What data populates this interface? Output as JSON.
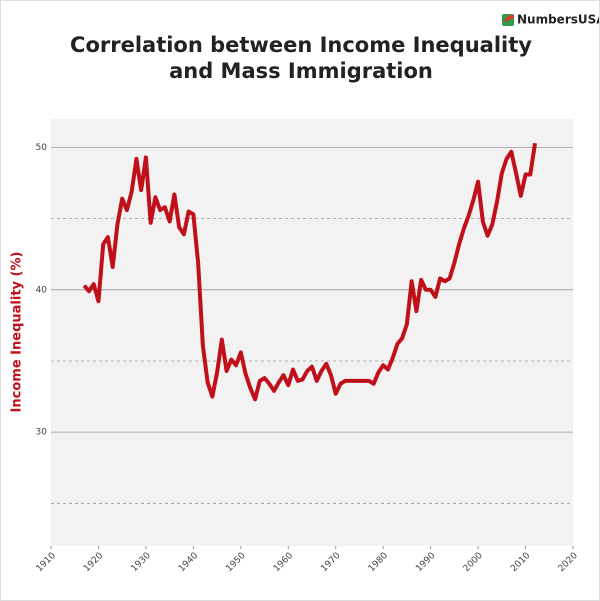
{
  "brand": "NumbersUSA",
  "chart_data": {
    "type": "line",
    "title": [
      "Correlation between Income Inequality",
      "and Mass Immigration"
    ],
    "y_label": "Income Inequality (%)",
    "x": [
      1917,
      1918,
      1919,
      1920,
      1921,
      1922,
      1923,
      1924,
      1925,
      1926,
      1927,
      1928,
      1929,
      1930,
      1931,
      1932,
      1933,
      1934,
      1935,
      1936,
      1937,
      1938,
      1939,
      1940,
      1941,
      1942,
      1943,
      1944,
      1945,
      1946,
      1947,
      1948,
      1949,
      1950,
      1951,
      1952,
      1953,
      1954,
      1955,
      1956,
      1957,
      1958,
      1959,
      1960,
      1961,
      1962,
      1963,
      1964,
      1965,
      1966,
      1967,
      1968,
      1969,
      1970,
      1971,
      1972,
      1973,
      1974,
      1975,
      1976,
      1977,
      1978,
      1979,
      1980,
      1981,
      1982,
      1983,
      1984,
      1985,
      1986,
      1987,
      1988,
      1989,
      1990,
      1991,
      1992,
      1993,
      1994,
      1995,
      1996,
      1997,
      1998,
      1999,
      2000,
      2001,
      2002,
      2003,
      2004,
      2005,
      2006,
      2007,
      2008,
      2009,
      2010,
      2011,
      2012
    ],
    "values": [
      40.3,
      39.9,
      40.4,
      39.2,
      43.2,
      43.7,
      41.6,
      44.6,
      46.4,
      45.6,
      46.9,
      49.2,
      47.0,
      49.3,
      44.7,
      46.5,
      45.6,
      45.8,
      44.8,
      46.7,
      44.4,
      43.9,
      45.5,
      45.3,
      41.9,
      36.1,
      33.5,
      32.5,
      34.2,
      36.5,
      34.3,
      35.1,
      34.7,
      35.6,
      34.1,
      33.1,
      32.3,
      33.6,
      33.8,
      33.4,
      32.9,
      33.5,
      34.0,
      33.3,
      34.4,
      33.6,
      33.7,
      34.3,
      34.6,
      33.6,
      34.3,
      34.8,
      34.0,
      32.7,
      33.4,
      33.6,
      33.6,
      33.6,
      33.6,
      33.6,
      33.6,
      33.4,
      34.2,
      34.7,
      34.4,
      35.2,
      36.2,
      36.6,
      37.6,
      40.6,
      38.5,
      40.7,
      40.0,
      40.0,
      39.5,
      40.8,
      40.6,
      40.8,
      41.9,
      43.2,
      44.3,
      45.2,
      46.3,
      47.6,
      44.8,
      43.8,
      44.6,
      46.2,
      48.2,
      49.2,
      49.7,
      48.2,
      46.6,
      48.1,
      48.1,
      50.3
    ],
    "color": "#c0101a",
    "xlim": [
      1910,
      2020
    ],
    "xticks": [
      1910,
      1920,
      1930,
      1940,
      1950,
      1960,
      1970,
      1980,
      1990,
      2000,
      2010,
      2020
    ],
    "ylim": [
      22,
      52
    ],
    "yticks": [
      30,
      40,
      50
    ],
    "minor_yticks": [
      25,
      35,
      45
    ],
    "grid": true
  }
}
